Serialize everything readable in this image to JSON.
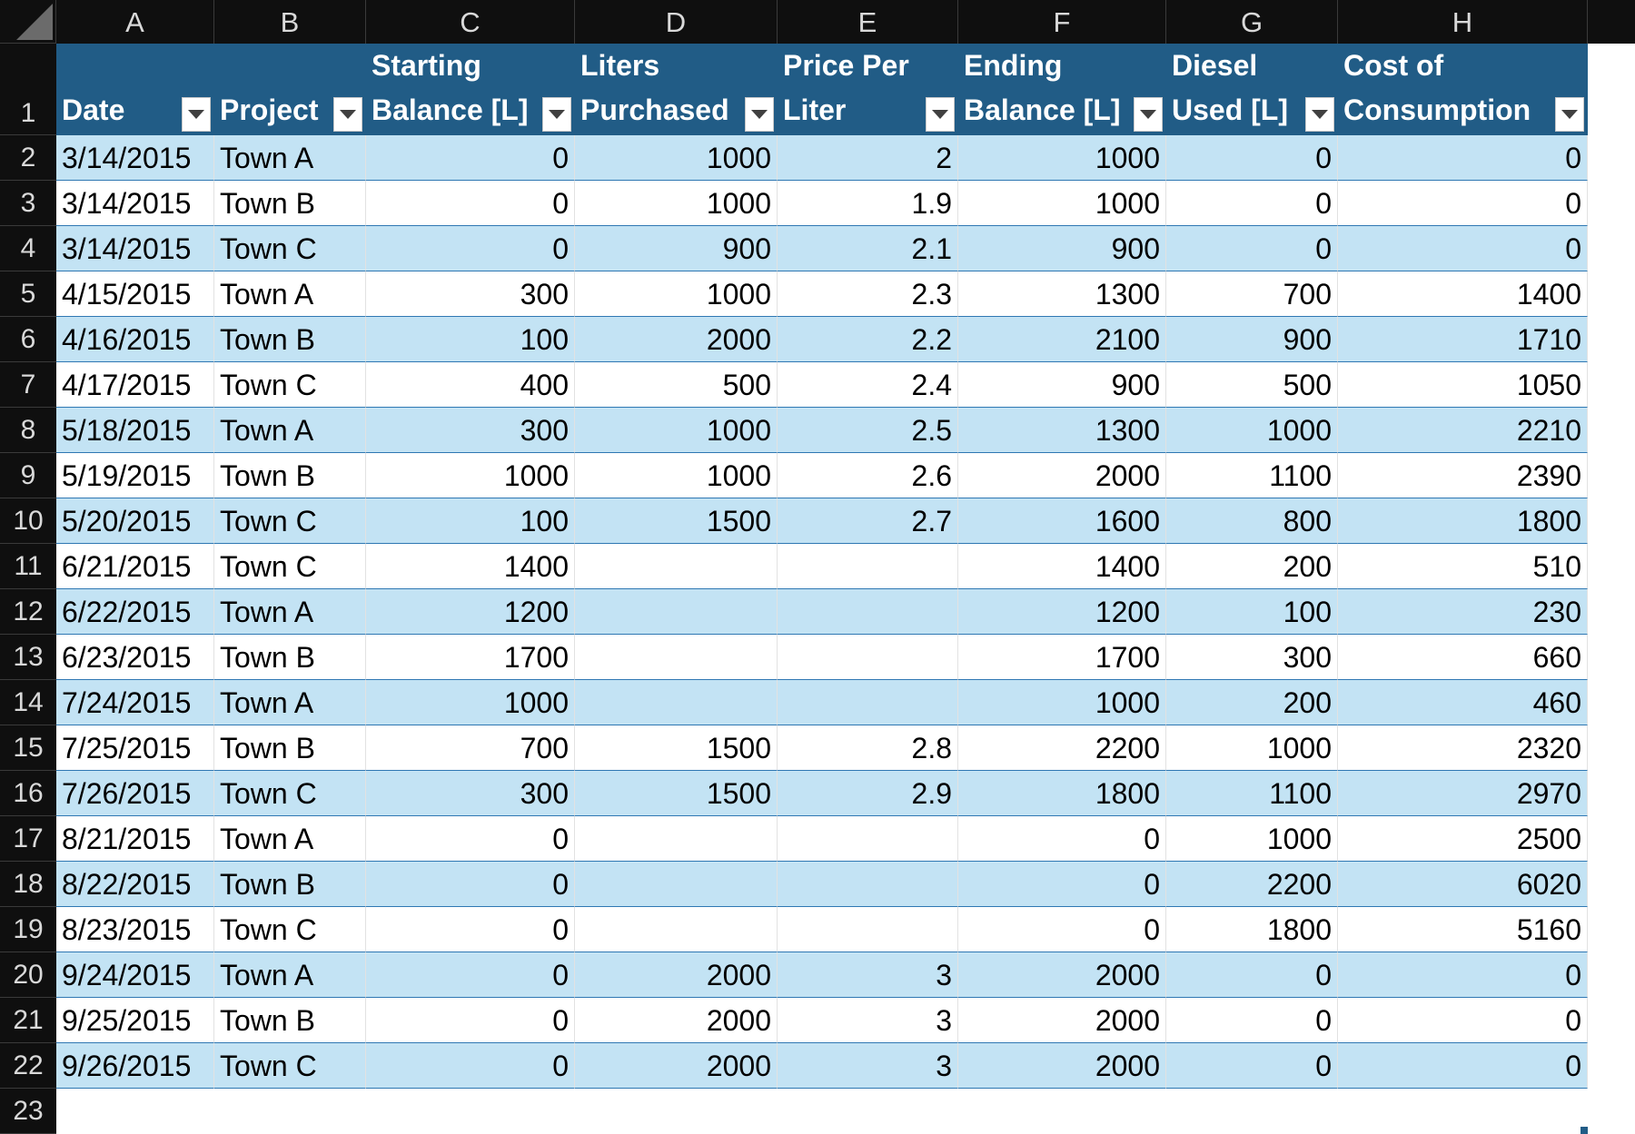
{
  "sheet": {
    "column_letters": [
      "A",
      "B",
      "C",
      "D",
      "E",
      "F",
      "G",
      "H"
    ],
    "row_numbers": [
      "1",
      "2",
      "3",
      "4",
      "5",
      "6",
      "7",
      "8",
      "9",
      "10",
      "11",
      "12",
      "13",
      "14",
      "15",
      "16",
      "17",
      "18",
      "19",
      "20",
      "21",
      "22",
      "23"
    ],
    "headers": [
      {
        "line1": "",
        "line2": "Date"
      },
      {
        "line1": "",
        "line2": "Project"
      },
      {
        "line1": "Starting",
        "line2": "Balance [L]"
      },
      {
        "line1": "Liters",
        "line2": "Purchased"
      },
      {
        "line1": "Price Per",
        "line2": "Liter"
      },
      {
        "line1": "Ending",
        "line2": "Balance [L]"
      },
      {
        "line1": "Diesel",
        "line2": "Used [L]"
      },
      {
        "line1": "Cost of",
        "line2": "Consumption"
      }
    ],
    "rows": [
      [
        "3/14/2015",
        "Town A",
        "0",
        "1000",
        "2",
        "1000",
        "0",
        "0"
      ],
      [
        "3/14/2015",
        "Town B",
        "0",
        "1000",
        "1.9",
        "1000",
        "0",
        "0"
      ],
      [
        "3/14/2015",
        "Town C",
        "0",
        "900",
        "2.1",
        "900",
        "0",
        "0"
      ],
      [
        "4/15/2015",
        "Town A",
        "300",
        "1000",
        "2.3",
        "1300",
        "700",
        "1400"
      ],
      [
        "4/16/2015",
        "Town B",
        "100",
        "2000",
        "2.2",
        "2100",
        "900",
        "1710"
      ],
      [
        "4/17/2015",
        "Town C",
        "400",
        "500",
        "2.4",
        "900",
        "500",
        "1050"
      ],
      [
        "5/18/2015",
        "Town A",
        "300",
        "1000",
        "2.5",
        "1300",
        "1000",
        "2210"
      ],
      [
        "5/19/2015",
        "Town B",
        "1000",
        "1000",
        "2.6",
        "2000",
        "1100",
        "2390"
      ],
      [
        "5/20/2015",
        "Town C",
        "100",
        "1500",
        "2.7",
        "1600",
        "800",
        "1800"
      ],
      [
        "6/21/2015",
        "Town C",
        "1400",
        "",
        "",
        "1400",
        "200",
        "510"
      ],
      [
        "6/22/2015",
        "Town A",
        "1200",
        "",
        "",
        "1200",
        "100",
        "230"
      ],
      [
        "6/23/2015",
        "Town B",
        "1700",
        "",
        "",
        "1700",
        "300",
        "660"
      ],
      [
        "7/24/2015",
        "Town A",
        "1000",
        "",
        "",
        "1000",
        "200",
        "460"
      ],
      [
        "7/25/2015",
        "Town B",
        "700",
        "1500",
        "2.8",
        "2200",
        "1000",
        "2320"
      ],
      [
        "7/26/2015",
        "Town C",
        "300",
        "1500",
        "2.9",
        "1800",
        "1100",
        "2970"
      ],
      [
        "8/21/2015",
        "Town A",
        "0",
        "",
        "",
        "0",
        "1000",
        "2500"
      ],
      [
        "8/22/2015",
        "Town B",
        "0",
        "",
        "",
        "0",
        "2200",
        "6020"
      ],
      [
        "8/23/2015",
        "Town C",
        "0",
        "",
        "",
        "0",
        "1800",
        "5160"
      ],
      [
        "9/24/2015",
        "Town A",
        "0",
        "2000",
        "3",
        "2000",
        "0",
        "0"
      ],
      [
        "9/25/2015",
        "Town B",
        "0",
        "2000",
        "3",
        "2000",
        "0",
        "0"
      ],
      [
        "9/26/2015",
        "Town C",
        "0",
        "2000",
        "3",
        "2000",
        "0",
        "0"
      ]
    ]
  },
  "colors": {
    "header_fill": "#215c86",
    "band_fill": "#c3e3f4",
    "sheet_chrome": "#0f0f0f"
  },
  "icons": {
    "filter": "filter-dropdown-icon",
    "corner": "select-all-icon"
  }
}
